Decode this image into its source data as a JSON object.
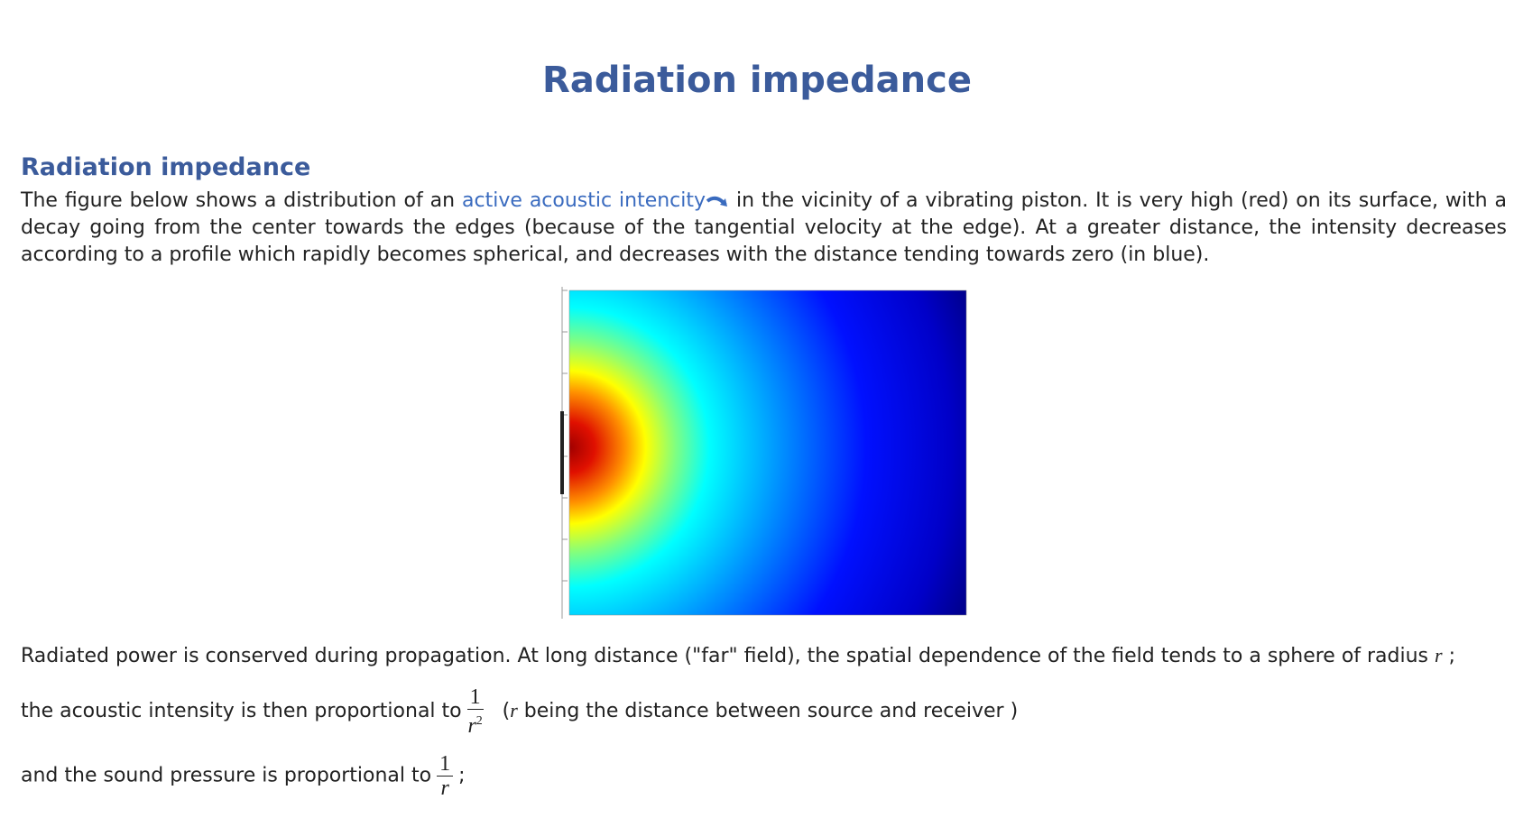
{
  "page_title": "Radiation impedance",
  "section": {
    "heading": "Radiation impedance",
    "intro": {
      "before": "The figure below shows a distribution of an",
      "link": "active acoustic intencity",
      "after": "in the vicinity of a vibrating piston. It is very high (red) on its surface, with a decay going from the center towards the edges (because of the tangential velocity at the edge). At a greater distance, the intensity decreases according to a profile which rapidly becomes spherical, and decreases with the distance tending towards zero (in blue)."
    },
    "far_field": {
      "text": "Radiated power is conserved during propagation. At long distance (\"far\" field), the spatial dependence of the field tends to a sphere of radius",
      "var": "r",
      "end": ";"
    },
    "intensity": {
      "text": "the acoustic intensity is then proportional to",
      "numerator": "1",
      "denominator": "r",
      "exponent": "2",
      "note_open": "(",
      "note_var": "r",
      "note_text": "being the distance between source and receiver )"
    },
    "pressure": {
      "text": "and the sound pressure is proportional to",
      "numerator": "1",
      "denominator": "r",
      "end": ";"
    }
  }
}
